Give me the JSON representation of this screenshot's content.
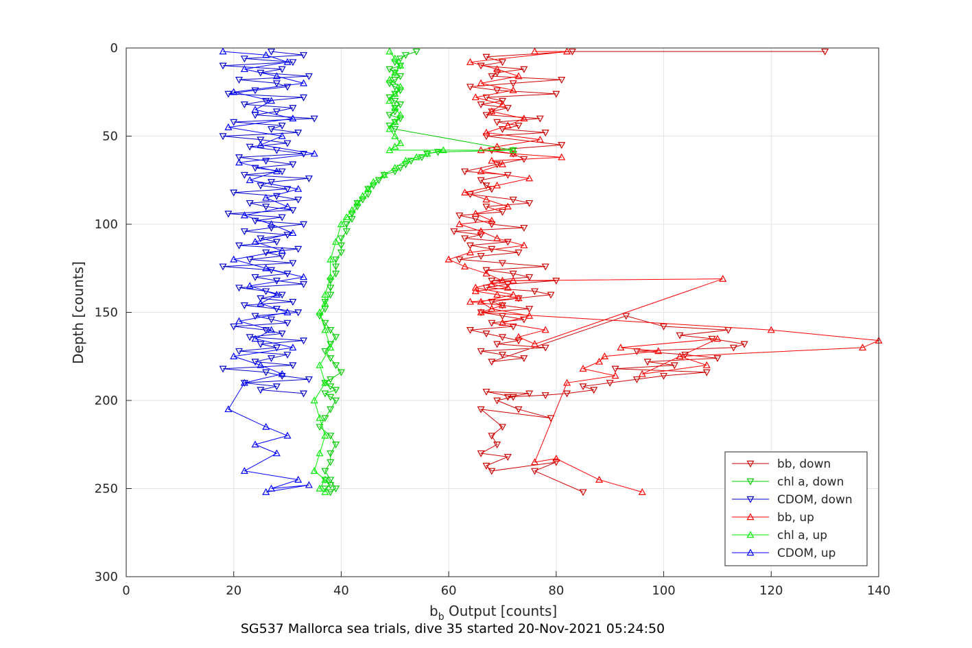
{
  "chart_data": {
    "type": "scatter",
    "title": "",
    "xlabel_base": "b",
    "xlabel_sub": "b",
    "xlabel_rest": " Output [counts]",
    "ylabel": "Depth [counts]",
    "caption": "SG537 Mallorca sea trials, dive 35 started 20-Nov-2021 05:24:50",
    "xlim": [
      0,
      140
    ],
    "ylim": [
      0,
      300
    ],
    "y_reversed": true,
    "grid": true,
    "legend_position": "bottom-right",
    "xticks": [
      "0",
      "20",
      "40",
      "60",
      "80",
      "100",
      "120",
      "140"
    ],
    "yticks": [
      "0",
      "50",
      "100",
      "150",
      "200",
      "250",
      "300"
    ],
    "series": [
      {
        "name": "bb, down",
        "color": "#cc0000",
        "marker": "triangle-down",
        "x": [
          130,
          83,
          67,
          70,
          66,
          74,
          69,
          68,
          81,
          72,
          64,
          69,
          80,
          67,
          70,
          66,
          71,
          68,
          67,
          77,
          69,
          73,
          70,
          78,
          67,
          81,
          68,
          72,
          74,
          69,
          63,
          71,
          66,
          67,
          68,
          64,
          72,
          75,
          67,
          70,
          62,
          65,
          68,
          74,
          61,
          66,
          63,
          71,
          64,
          68,
          73,
          66,
          62,
          70,
          78,
          67,
          72,
          75,
          68,
          80,
          71,
          67,
          76,
          79,
          73,
          68,
          70,
          75,
          66,
          70,
          74,
          68,
          72,
          64,
          67,
          70,
          73,
          69,
          78,
          66,
          70,
          74,
          68,
          93,
          100,
          112,
          103,
          109,
          115,
          113,
          95,
          104,
          110,
          97,
          102,
          91,
          108,
          100,
          95,
          90,
          85,
          87,
          82,
          78,
          71,
          75,
          67,
          72,
          69,
          73,
          79,
          66,
          70,
          68,
          69,
          66,
          71,
          67,
          68,
          80,
          76,
          85
        ],
        "y": [
          2,
          2,
          5,
          8,
          10,
          12,
          14,
          16,
          18,
          20,
          22,
          24,
          26,
          28,
          30,
          32,
          34,
          36,
          38,
          40,
          42,
          44,
          46,
          48,
          50,
          55,
          58,
          60,
          63,
          66,
          70,
          72,
          75,
          78,
          80,
          83,
          86,
          88,
          90,
          93,
          95,
          97,
          100,
          102,
          104,
          106,
          108,
          110,
          112,
          114,
          116,
          118,
          120,
          122,
          124,
          126,
          128,
          130,
          132,
          132,
          134,
          136,
          138,
          140,
          142,
          144,
          146,
          148,
          150,
          152,
          154,
          156,
          158,
          160,
          162,
          164,
          166,
          168,
          170,
          172,
          174,
          176,
          178,
          152,
          158,
          160,
          163,
          165,
          168,
          170,
          172,
          174,
          176,
          178,
          180,
          182,
          184,
          186,
          188,
          190,
          192,
          194,
          196,
          197,
          198,
          196,
          195,
          198,
          200,
          205,
          210,
          205,
          215,
          220,
          225,
          230,
          232,
          237,
          240,
          235,
          240,
          252
        ]
      },
      {
        "name": "chl a, down",
        "color": "#00cc00",
        "marker": "triangle-down",
        "x": [
          54,
          52,
          51,
          50,
          51,
          49,
          50,
          51,
          50,
          49,
          50,
          51,
          50,
          49,
          50,
          51,
          50,
          50,
          49,
          51,
          50,
          49,
          50,
          72,
          58,
          56,
          55,
          53,
          52,
          51,
          50,
          48,
          47,
          46,
          45,
          45,
          44,
          43,
          43,
          42,
          42,
          41,
          41,
          40,
          40,
          40,
          39,
          39,
          39,
          38,
          38,
          38,
          37,
          37,
          36,
          37,
          38,
          39,
          38,
          37,
          38,
          39,
          40,
          38,
          37,
          38,
          39,
          37,
          38,
          39,
          38,
          37,
          36,
          38,
          39,
          38,
          38,
          37,
          38,
          39,
          38,
          37,
          38,
          37
        ],
        "y": [
          2,
          4,
          6,
          8,
          10,
          12,
          14,
          16,
          18,
          20,
          22,
          24,
          26,
          28,
          30,
          32,
          34,
          36,
          38,
          40,
          42,
          44,
          46,
          58,
          59,
          60,
          62,
          64,
          66,
          68,
          70,
          72,
          75,
          78,
          80,
          83,
          86,
          88,
          90,
          94,
          97,
          100,
          104,
          108,
          112,
          116,
          120,
          124,
          128,
          132,
          136,
          140,
          144,
          148,
          152,
          156,
          160,
          164,
          168,
          172,
          176,
          180,
          184,
          188,
          190,
          192,
          194,
          196,
          198,
          200,
          205,
          210,
          215,
          220,
          225,
          230,
          235,
          240,
          245,
          250,
          252,
          250,
          248,
          245
        ]
      },
      {
        "name": "CDOM, down",
        "color": "#0000cc",
        "marker": "triangle-down",
        "x": [
          27,
          33,
          22,
          31,
          18,
          29,
          25,
          34,
          21,
          28,
          30,
          24,
          19,
          33,
          26,
          22,
          31,
          28,
          24,
          35,
          20,
          29,
          27,
          32,
          18,
          25,
          30,
          23,
          28,
          33,
          21,
          26,
          31,
          24,
          29,
          22,
          34,
          27,
          25,
          30,
          20,
          28,
          32,
          23,
          26,
          31,
          19,
          29,
          24,
          33,
          27,
          22,
          30,
          25,
          28,
          21,
          32,
          26,
          29,
          23,
          31,
          18,
          27,
          30,
          24,
          28,
          33,
          21,
          26,
          29,
          25,
          31,
          22,
          28,
          32,
          24,
          27,
          30,
          20,
          26,
          29,
          23,
          33,
          25,
          28,
          21,
          30,
          27,
          24,
          31,
          18,
          26,
          29,
          34,
          22,
          28,
          25,
          33
        ],
        "y": [
          2,
          4,
          6,
          8,
          10,
          12,
          14,
          16,
          18,
          20,
          22,
          24,
          26,
          28,
          30,
          32,
          34,
          36,
          38,
          40,
          42,
          44,
          46,
          48,
          50,
          52,
          54,
          56,
          58,
          60,
          62,
          64,
          66,
          68,
          70,
          72,
          74,
          76,
          78,
          80,
          82,
          84,
          86,
          88,
          90,
          92,
          94,
          96,
          98,
          100,
          102,
          104,
          106,
          108,
          110,
          112,
          114,
          116,
          118,
          120,
          122,
          124,
          126,
          128,
          130,
          132,
          134,
          136,
          138,
          140,
          142,
          144,
          146,
          148,
          150,
          152,
          154,
          156,
          158,
          160,
          162,
          164,
          166,
          168,
          170,
          172,
          174,
          176,
          178,
          180,
          182,
          184,
          186,
          188,
          190,
          192,
          194,
          196
        ]
      },
      {
        "name": "bb, up",
        "color": "#ff0000",
        "marker": "triangle-up",
        "x": [
          76,
          82,
          64,
          69,
          73,
          66,
          72,
          65,
          70,
          68,
          74,
          71,
          67,
          77,
          69,
          66,
          72,
          81,
          68,
          70,
          66,
          75,
          69,
          63,
          67,
          71,
          65,
          68,
          62,
          66,
          69,
          74,
          64,
          60,
          63,
          67,
          70,
          65,
          72,
          66,
          68,
          75,
          70,
          78,
          73,
          76,
          111,
          72,
          68,
          71,
          65,
          69,
          73,
          64,
          70,
          66,
          120,
          140,
          137,
          103,
          108,
          96,
          110,
          92,
          99,
          89,
          88,
          85,
          91,
          82,
          76,
          80,
          88,
          96
        ],
        "y": [
          2,
          2,
          8,
          12,
          16,
          20,
          24,
          28,
          32,
          36,
          40,
          44,
          48,
          52,
          56,
          58,
          60,
          62,
          64,
          66,
          70,
          74,
          78,
          82,
          86,
          90,
          94,
          98,
          100,
          104,
          108,
          112,
          116,
          120,
          124,
          128,
          132,
          136,
          140,
          144,
          148,
          152,
          156,
          160,
          164,
          168,
          131,
          132,
          134,
          136,
          138,
          140,
          142,
          144,
          146,
          150,
          160,
          166,
          170,
          175,
          180,
          185,
          165,
          170,
          172,
          175,
          178,
          182,
          186,
          190,
          235,
          233,
          245,
          252
        ]
      },
      {
        "name": "chl a, up",
        "color": "#00ee00",
        "marker": "triangle-up",
        "x": [
          49,
          50,
          51,
          50,
          49,
          51,
          50,
          49,
          50,
          51,
          50,
          49,
          50,
          51,
          50,
          49,
          72,
          59,
          56,
          54,
          52,
          50,
          48,
          46,
          45,
          44,
          43,
          42,
          41,
          40,
          39,
          38,
          38,
          37,
          37,
          36,
          37,
          38,
          36,
          37,
          35,
          36,
          37,
          36,
          35,
          37,
          36,
          37
        ],
        "y": [
          2,
          6,
          10,
          14,
          18,
          22,
          26,
          30,
          34,
          38,
          42,
          46,
          50,
          54,
          56,
          58,
          58,
          58,
          60,
          62,
          64,
          68,
          72,
          76,
          80,
          84,
          88,
          92,
          96,
          100,
          110,
          120,
          130,
          140,
          145,
          150,
          160,
          170,
          180,
          190,
          200,
          210,
          220,
          230,
          240,
          245,
          250,
          252
        ]
      },
      {
        "name": "CDOM, up",
        "color": "#0000ff",
        "marker": "triangle-up",
        "x": [
          18,
          26,
          30,
          22,
          28,
          33,
          20,
          27,
          24,
          31,
          19,
          29,
          25,
          35,
          21,
          28,
          23,
          32,
          26,
          30,
          22,
          27,
          31,
          24,
          29,
          20,
          26,
          33,
          23,
          28,
          25,
          30,
          21,
          27,
          24,
          31,
          20,
          25,
          29,
          22,
          19,
          26,
          30,
          24,
          28,
          22,
          32,
          27,
          34,
          26
        ],
        "y": [
          2,
          4,
          8,
          12,
          16,
          20,
          25,
          30,
          35,
          40,
          45,
          50,
          55,
          60,
          65,
          70,
          75,
          80,
          85,
          90,
          95,
          100,
          105,
          110,
          115,
          120,
          125,
          130,
          135,
          140,
          145,
          150,
          155,
          160,
          165,
          170,
          175,
          180,
          185,
          190,
          205,
          215,
          220,
          225,
          230,
          240,
          245,
          250,
          248,
          252
        ]
      }
    ]
  }
}
